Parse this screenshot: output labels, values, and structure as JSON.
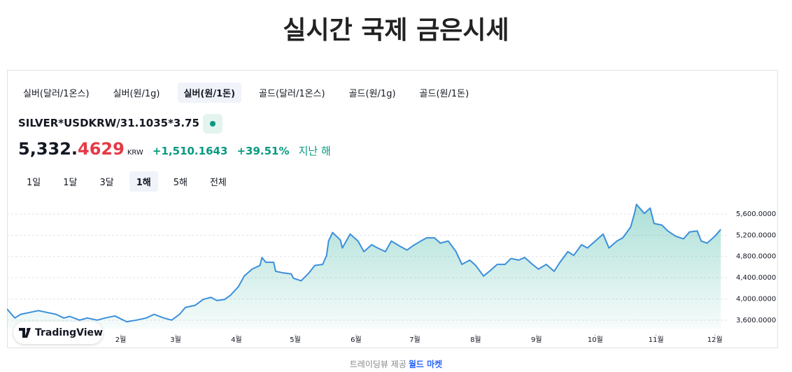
{
  "header": {
    "title": "실시간 국제 금은시세"
  },
  "tabs": [
    {
      "label": "실버(달러/1온스)",
      "selected": false
    },
    {
      "label": "실버(원/1g)",
      "selected": false
    },
    {
      "label": "실버(원/1돈)",
      "selected": true
    },
    {
      "label": "골드(달러/1온스)",
      "selected": false
    },
    {
      "label": "골드(원/1g)",
      "selected": false
    },
    {
      "label": "골드(원/1돈)",
      "selected": false
    }
  ],
  "symbol": "SILVER*USDKRW/31.1035*3.75",
  "price": {
    "integer": "5,332.",
    "fraction": "4629",
    "currency": "KRW",
    "change": "+1,510.1643",
    "change_percent": "+39.51%",
    "period": "지난 해"
  },
  "ranges": [
    {
      "label": "1일",
      "selected": false
    },
    {
      "label": "1달",
      "selected": false
    },
    {
      "label": "3달",
      "selected": false
    },
    {
      "label": "1해",
      "selected": true
    },
    {
      "label": "5해",
      "selected": false
    },
    {
      "label": "전체",
      "selected": false
    }
  ],
  "badge": "TradingView",
  "footer": {
    "provider": "트레이딩뷰 제공",
    "link": "월드 마켓"
  },
  "chart_data": {
    "type": "area",
    "color": "#3b8fdc",
    "x": [
      -27,
      -23,
      -20,
      -16,
      -11,
      -6,
      -2,
      2,
      5,
      10,
      14,
      19,
      23,
      28,
      34,
      39,
      44,
      48,
      53,
      57,
      61,
      64,
      69,
      73,
      77,
      80,
      84,
      87,
      91,
      94,
      98,
      102,
      103,
      105,
      109,
      110,
      114,
      118,
      119,
      123,
      127,
      130,
      134,
      136,
      137,
      139,
      143,
      144,
      148,
      152,
      155,
      159,
      162,
      166,
      169,
      173,
      177,
      180,
      184,
      187,
      191,
      194,
      198,
      202,
      205,
      209,
      212,
      216,
      219,
      223,
      227,
      230,
      234,
      237,
      241,
      244,
      248,
      252,
      255,
      259,
      262,
      266,
      269,
      273,
      277,
      280,
      284,
      287,
      291,
      293,
      294,
      298,
      301,
      303,
      307,
      310,
      314,
      318,
      321,
      325,
      327,
      330,
      334,
      337
    ],
    "values": [
      3810,
      3640,
      3710,
      3740,
      3780,
      3740,
      3710,
      3640,
      3670,
      3600,
      3640,
      3600,
      3640,
      3680,
      3570,
      3600,
      3640,
      3710,
      3640,
      3600,
      3710,
      3840,
      3880,
      3990,
      4030,
      3970,
      3990,
      4070,
      4230,
      4430,
      4560,
      4630,
      4780,
      4690,
      4690,
      4520,
      4490,
      4470,
      4390,
      4340,
      4490,
      4630,
      4650,
      4820,
      5090,
      5250,
      5110,
      4960,
      5220,
      5090,
      4890,
      5020,
      4960,
      4890,
      5090,
      5000,
      4920,
      5000,
      5090,
      5150,
      5150,
      5050,
      5090,
      4890,
      4650,
      4730,
      4630,
      4430,
      4520,
      4650,
      4650,
      4760,
      4730,
      4780,
      4650,
      4560,
      4650,
      4520,
      4690,
      4890,
      4820,
      5020,
      4960,
      5090,
      5220,
      4960,
      5090,
      5150,
      5350,
      5610,
      5780,
      5610,
      5710,
      5420,
      5390,
      5280,
      5180,
      5130,
      5260,
      5280,
      5090,
      5050,
      5180,
      5310
    ],
    "xlim": [
      -27,
      338
    ],
    "xticks": [
      {
        "value": 31,
        "label": "2월"
      },
      {
        "value": 59,
        "label": "3월"
      },
      {
        "value": 90,
        "label": "4월"
      },
      {
        "value": 120,
        "label": "5월"
      },
      {
        "value": 151,
        "label": "6월"
      },
      {
        "value": 181,
        "label": "7월"
      },
      {
        "value": 212,
        "label": "8월"
      },
      {
        "value": 243,
        "label": "9월"
      },
      {
        "value": 273,
        "label": "10월"
      },
      {
        "value": 304,
        "label": "11월"
      },
      {
        "value": 334,
        "label": "12월"
      }
    ],
    "ylim": [
      3440,
      5810
    ],
    "yticks": [
      {
        "value": 3600,
        "label": "3,600.0000"
      },
      {
        "value": 4000,
        "label": "4,000.0000"
      },
      {
        "value": 4400,
        "label": "4,400.0000"
      },
      {
        "value": 4800,
        "label": "4,800.0000"
      },
      {
        "value": 5200,
        "label": "5,200.0000"
      },
      {
        "value": 5600,
        "label": "5,600.0000"
      }
    ],
    "grid": true
  }
}
